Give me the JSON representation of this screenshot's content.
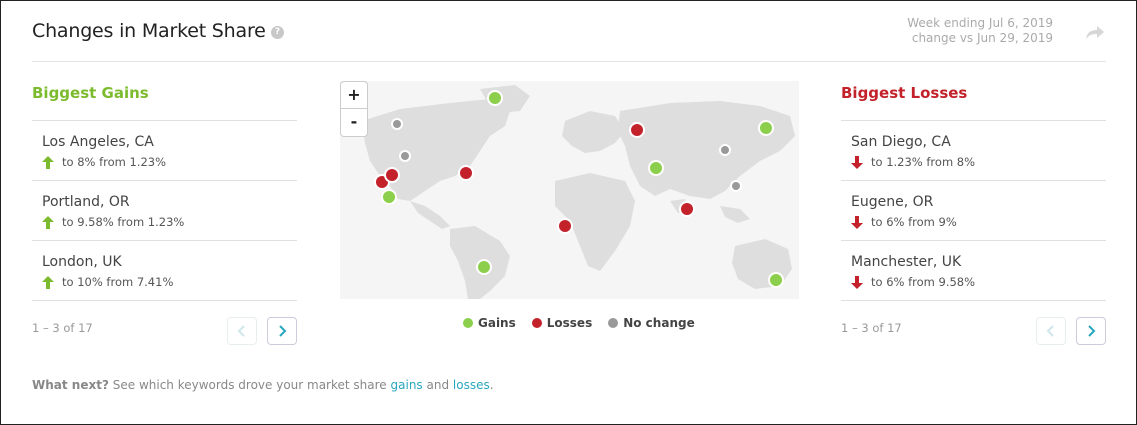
{
  "header": {
    "title": "Changes in Market Share",
    "help_icon": "?",
    "week_line": "Week ending Jul 6, 2019",
    "compare_line": "change vs Jun 29, 2019",
    "share_icon": "share-arrow"
  },
  "gains": {
    "title": "Biggest Gains",
    "items": [
      {
        "name": "Los Angeles, CA",
        "change": "to 8% from 1.23%"
      },
      {
        "name": "Portland, OR",
        "change": "to 9.58% from 1.23%"
      },
      {
        "name": "London, UK",
        "change": "to 10% from 7.41%"
      }
    ],
    "pager": "1 – 3 of 17"
  },
  "losses": {
    "title": "Biggest Losses",
    "items": [
      {
        "name": "San Diego, CA",
        "change": "to 1.23% from 8%"
      },
      {
        "name": "Eugene, OR",
        "change": "to 6% from 9%"
      },
      {
        "name": "Manchester, UK",
        "change": "to 6% from 9.58%"
      }
    ],
    "pager": "1 – 3 of 17"
  },
  "map": {
    "zoom_in": "+",
    "zoom_out": "-"
  },
  "legend": {
    "gains": "Gains",
    "losses": "Losses",
    "no_change": "No change"
  },
  "footer": {
    "prefix": "What next?",
    "text": "See which keywords drove your market share",
    "gains_link": "gains",
    "and": "and",
    "losses_link": "losses",
    "period": "."
  },
  "colors": {
    "gain": "#8ccf4d",
    "loss": "#c3222b",
    "no_change": "#999999",
    "link": "#27a7bf"
  }
}
